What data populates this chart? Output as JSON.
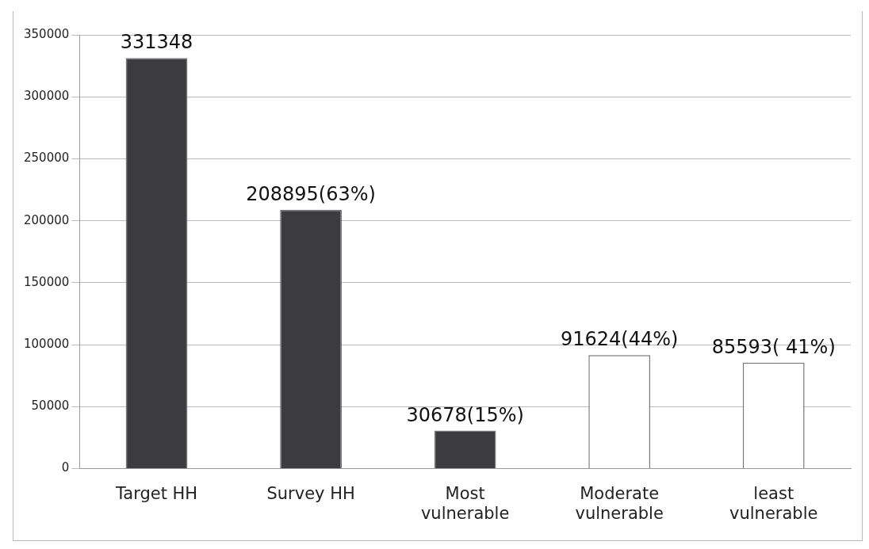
{
  "chart_data": {
    "type": "bar",
    "categories": [
      "Target HH",
      "Survey HH",
      "Most vulnerable",
      "Moderate vulnerable",
      "least vulnerable"
    ],
    "values": [
      331348,
      208895,
      30678,
      91624,
      85593
    ],
    "colors": [
      "#3c3c3e",
      "#3c3c3e",
      "#3c3c3e",
      "#ffffff",
      "#ffffff"
    ],
    "value_labels": [
      "331348",
      "208895(63%)",
      "30678(15%)",
      "91624(44%)",
      "85593( 41%)"
    ],
    "ylim": [
      0,
      350000
    ],
    "yticks": [
      0,
      50000,
      100000,
      150000,
      200000,
      250000,
      300000,
      350000
    ],
    "grid": "y",
    "legend": false
  }
}
